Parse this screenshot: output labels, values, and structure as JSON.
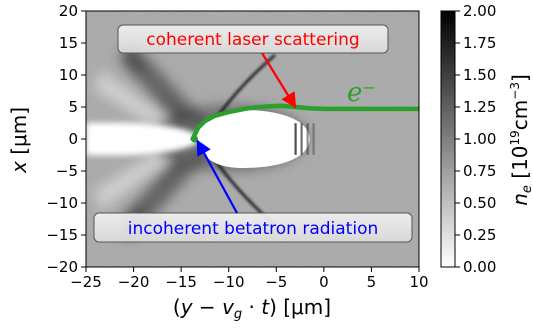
{
  "chart_data": {
    "type": "heatmap",
    "xlim": [
      -25,
      10
    ],
    "ylim": [
      -20,
      20
    ],
    "x_ticks": [
      -25,
      -20,
      -15,
      -10,
      -5,
      0,
      5,
      10
    ],
    "y_ticks": [
      -20,
      -15,
      -10,
      -5,
      0,
      5,
      10,
      15,
      20
    ],
    "x_tick_labels": [
      "−25",
      "−20",
      "−15",
      "−10",
      "−5",
      "0",
      "5",
      "10"
    ],
    "y_tick_labels": [
      "−20",
      "−15",
      "−10",
      "−5",
      "0",
      "5",
      "10",
      "15",
      "20"
    ],
    "xlabel": "(y − vᵍ · t) [μm]",
    "ylabel": "x [μm]",
    "colorbar": {
      "label": "nₑ [10¹⁹cm⁻³]",
      "range": [
        0.0,
        2.0
      ],
      "ticks": [
        0.0,
        0.25,
        0.5,
        0.75,
        1.0,
        1.25,
        1.5,
        1.75,
        2.0
      ],
      "tick_labels": [
        "0.00",
        "0.25",
        "0.50",
        "0.75",
        "1.00",
        "1.25",
        "1.50",
        "1.75",
        "2.00"
      ],
      "colormap": "Greys"
    },
    "bubble": {
      "x_back": -13.5,
      "x_front": -1.5,
      "half_width": 4.5
    },
    "series": [
      {
        "name": "e⁻",
        "color": "#2ca02c",
        "x": [
          -13.8,
          -13.2,
          -12.5,
          -11.5,
          -10,
          -8,
          -6,
          -4.5,
          -3,
          -1.5,
          0,
          2,
          5,
          8,
          10
        ],
        "y": [
          0,
          1.8,
          2.8,
          3.6,
          4.2,
          4.8,
          5.1,
          5.2,
          5.0,
          4.8,
          4.7,
          4.7,
          4.7,
          4.7,
          4.7
        ]
      }
    ],
    "annotations": [
      {
        "text": "coherent laser scattering",
        "color": "#ff0000",
        "arrow_to": [
          -3,
          5.0
        ]
      },
      {
        "text": "incoherent betatron radiation",
        "color": "#0000ff",
        "arrow_to": [
          -13.5,
          -0.3
        ]
      }
    ]
  },
  "labels": {
    "eminus": "e⁻",
    "coherent": "coherent laser scattering",
    "incoherent": "incoherent betatron radiation"
  },
  "colors": {
    "electron_trace": "#2ca02c",
    "coherent_annotation": "#ff0000",
    "incoherent_annotation": "#0000ff",
    "background_density": "#a8a8a8"
  }
}
